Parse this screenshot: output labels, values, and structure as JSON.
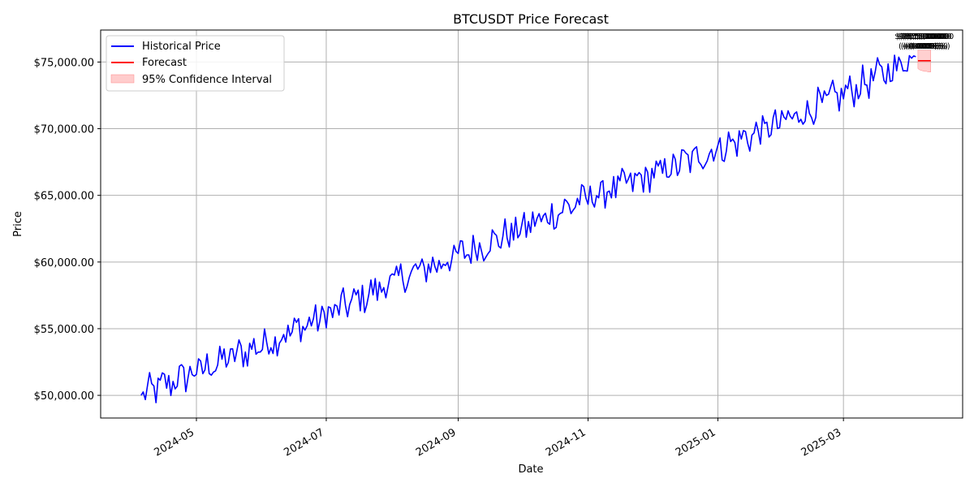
{
  "chart_data": {
    "type": "line",
    "title": "BTCUSDT Price Forecast",
    "xlabel": "Date",
    "ylabel": "Price",
    "xlim": [
      "2024-03-17",
      "2025-04-26"
    ],
    "ylim": [
      48300,
      77400
    ],
    "grid": true,
    "legend_placement": "top-left",
    "x_ticks": [
      "2024-05",
      "2024-07",
      "2024-09",
      "2024-11",
      "2025-01",
      "2025-03"
    ],
    "y_ticks": [
      "$50,000.00",
      "$55,000.00",
      "$60,000.00",
      "$65,000.00",
      "$70,000.00",
      "$75,000.00"
    ],
    "legend": [
      "Historical Price",
      "Forecast",
      "95% Confidence Interval"
    ],
    "series": [
      {
        "name": "Historical Price",
        "color": "#0000ff",
        "start_date": "2024-04-05",
        "end_date": "2025-04-04",
        "trend": [
          {
            "date": "2024-04-05",
            "value": 50000
          },
          {
            "date": "2024-05-01",
            "value": 51800
          },
          {
            "date": "2024-06-01",
            "value": 53800
          },
          {
            "date": "2024-07-01",
            "value": 56000
          },
          {
            "date": "2024-08-01",
            "value": 58500
          },
          {
            "date": "2024-09-01",
            "value": 60500
          },
          {
            "date": "2024-10-01",
            "value": 62500
          },
          {
            "date": "2024-11-01",
            "value": 64800
          },
          {
            "date": "2024-12-01",
            "value": 66500
          },
          {
            "date": "2025-01-01",
            "value": 68500
          },
          {
            "date": "2025-02-01",
            "value": 70500
          },
          {
            "date": "2025-03-01",
            "value": 72600
          },
          {
            "date": "2025-04-04",
            "value": 75400
          }
        ],
        "noise_amplitude": 1200
      },
      {
        "name": "Forecast",
        "color": "#ff0000",
        "x": [
          "2025-04-05",
          "2025-04-06",
          "2025-04-07",
          "2025-04-08",
          "2025-04-09",
          "2025-04-10",
          "2025-04-11"
        ],
        "values": [
          75100,
          75100,
          75100,
          75100,
          75100,
          75100,
          75100
        ]
      },
      {
        "name": "95% Confidence Interval",
        "color": "#ffaaaa",
        "x": [
          "2025-04-05",
          "2025-04-06",
          "2025-04-07",
          "2025-04-08",
          "2025-04-09",
          "2025-04-10",
          "2025-04-11"
        ],
        "lower": [
          74500,
          74400,
          74350,
          74300,
          74300,
          74250,
          74250
        ],
        "upper": [
          75900,
          75900,
          75900,
          75900,
          75900,
          75900,
          75900
        ]
      }
    ],
    "annotation_color": "#000000"
  }
}
